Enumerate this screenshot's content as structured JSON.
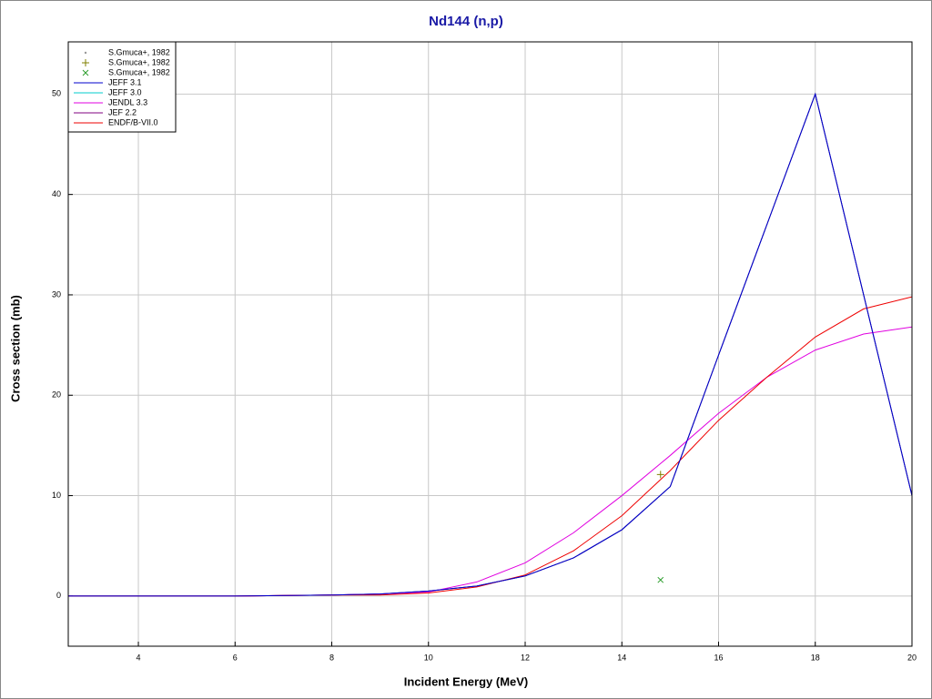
{
  "chart_data": {
    "type": "line",
    "title": "Nd144 (n,p)",
    "x_label": "Incident Energy (MeV)",
    "y_label": "Cross section (mb)",
    "xlim": [
      2.55,
      20
    ],
    "ylim": [
      -5,
      55.2
    ],
    "xticks": [
      4,
      6,
      8,
      10,
      12,
      14,
      16,
      18,
      20
    ],
    "yticks": [
      0,
      10,
      20,
      30,
      40,
      50
    ],
    "grid": true,
    "legend": "top-left",
    "series": [
      {
        "name": "S.Gmuca+, 1982",
        "kind": "scatter",
        "marker": "dot",
        "color": "#999999",
        "x": [],
        "values": []
      },
      {
        "name": "S.Gmuca+, 1982",
        "kind": "scatter",
        "marker": "plus",
        "color": "#808000",
        "x": [
          14.8
        ],
        "values": [
          12.1
        ]
      },
      {
        "name": "S.Gmuca+, 1982",
        "kind": "scatter",
        "marker": "cross",
        "color": "#2e9e2e",
        "x": [
          14.8
        ],
        "values": [
          1.6
        ]
      },
      {
        "name": "JEFF 3.1",
        "kind": "line",
        "color": "#0000cc",
        "x": [
          2.55,
          6,
          8,
          9,
          10,
          11,
          12,
          13,
          14,
          15,
          16,
          17,
          18,
          19,
          20
        ],
        "values": [
          0,
          0,
          0.1,
          0.2,
          0.5,
          1.0,
          2.0,
          3.8,
          6.6,
          10.9,
          24,
          37,
          50,
          30,
          10
        ]
      },
      {
        "name": "JEFF 3.0",
        "kind": "line",
        "color": "#00cccc",
        "x": [
          2.55,
          6,
          8,
          9,
          10,
          11,
          12,
          13,
          14,
          15,
          16,
          17,
          18,
          19,
          20
        ],
        "values": [
          0,
          0,
          0.1,
          0.2,
          0.5,
          1.0,
          2.0,
          3.8,
          6.6,
          10.9,
          24,
          37,
          50,
          30,
          10
        ]
      },
      {
        "name": "JENDL 3.3",
        "kind": "line",
        "color": "#e000e0",
        "x": [
          2.55,
          6,
          8,
          9,
          10,
          11,
          12,
          13,
          14,
          15,
          16,
          17,
          18,
          19,
          20
        ],
        "values": [
          0,
          0,
          0.1,
          0.2,
          0.4,
          1.4,
          3.3,
          6.3,
          10,
          14,
          18.2,
          21.8,
          24.5,
          26.1,
          26.8
        ]
      },
      {
        "name": "JEF 2.2",
        "kind": "line",
        "color": "#800080",
        "x": [
          2.55,
          6,
          8,
          9,
          10,
          11,
          12,
          13,
          14,
          15,
          16,
          17,
          18,
          19,
          20
        ],
        "values": [
          0,
          0,
          0.1,
          0.2,
          0.5,
          1.0,
          2.0,
          3.8,
          6.6,
          10.9,
          24,
          37,
          50,
          30,
          10
        ]
      },
      {
        "name": "ENDF/B-VII.0",
        "kind": "line",
        "color": "#ee0000",
        "x": [
          2.55,
          6,
          8,
          9,
          10,
          11,
          12,
          13,
          14,
          15,
          16,
          17,
          18,
          19,
          20
        ],
        "values": [
          0,
          0,
          0.1,
          0.1,
          0.3,
          0.9,
          2.1,
          4.5,
          8.0,
          12.5,
          17.5,
          21.8,
          25.8,
          28.6,
          29.8
        ]
      }
    ]
  }
}
